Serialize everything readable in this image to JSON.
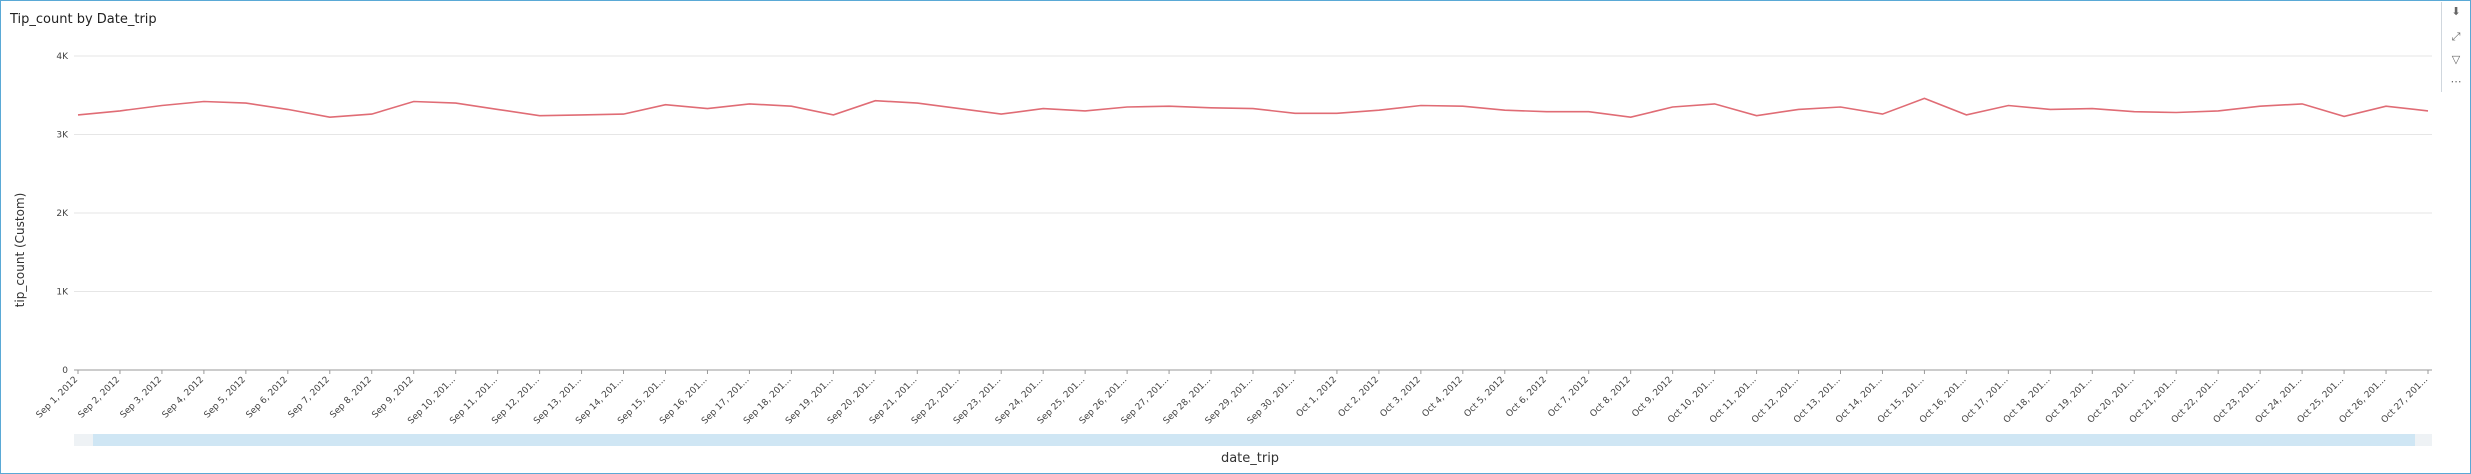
{
  "chart_data": {
    "type": "line",
    "title": "Tip_count by Date_trip",
    "xlabel": "date_trip",
    "ylabel": "tip_count (Custom)",
    "ylim": [
      0,
      4000
    ],
    "y_ticks": [
      "0",
      "1K",
      "2K",
      "3K",
      "4K"
    ],
    "grid": true,
    "legend": "none",
    "line_color": "#e06c75",
    "categories": [
      "Sep 1, 2012",
      "Sep 2, 2012",
      "Sep 3, 2012",
      "Sep 4, 2012",
      "Sep 5, 2012",
      "Sep 6, 2012",
      "Sep 7, 2012",
      "Sep 8, 2012",
      "Sep 9, 2012",
      "Sep 10, 201...",
      "Sep 11, 201...",
      "Sep 12, 201...",
      "Sep 13, 201...",
      "Sep 14, 201...",
      "Sep 15, 201...",
      "Sep 16, 201...",
      "Sep 17, 201...",
      "Sep 18, 201...",
      "Sep 19, 201...",
      "Sep 20, 201...",
      "Sep 21, 201...",
      "Sep 22, 201...",
      "Sep 23, 201...",
      "Sep 24, 201...",
      "Sep 25, 201...",
      "Sep 26, 201...",
      "Sep 27, 201...",
      "Sep 28, 201...",
      "Sep 29, 201...",
      "Sep 30, 201...",
      "Oct 1, 2012",
      "Oct 2, 2012",
      "Oct 3, 2012",
      "Oct 4, 2012",
      "Oct 5, 2012",
      "Oct 6, 2012",
      "Oct 7, 2012",
      "Oct 8, 2012",
      "Oct 9, 2012",
      "Oct 10, 201...",
      "Oct 11, 201...",
      "Oct 12, 201...",
      "Oct 13, 201...",
      "Oct 14, 201...",
      "Oct 15, 201...",
      "Oct 16, 201...",
      "Oct 17, 201...",
      "Oct 18, 201...",
      "Oct 19, 201...",
      "Oct 20, 201...",
      "Oct 21, 201...",
      "Oct 22, 201...",
      "Oct 23, 201...",
      "Oct 24, 201...",
      "Oct 25, 201...",
      "Oct 26, 201...",
      "Oct 27, 201..."
    ],
    "values": [
      3250,
      3300,
      3370,
      3420,
      3400,
      3320,
      3220,
      3260,
      3420,
      3400,
      3320,
      3240,
      3250,
      3260,
      3380,
      3330,
      3390,
      3360,
      3250,
      3430,
      3400,
      3330,
      3260,
      3330,
      3300,
      3350,
      3360,
      3340,
      3330,
      3270,
      3270,
      3310,
      3370,
      3360,
      3310,
      3290,
      3290,
      3220,
      3350,
      3390,
      3240,
      3320,
      3350,
      3260,
      3460,
      3250,
      3370,
      3320,
      3330,
      3290,
      3280,
      3300,
      3360,
      3390,
      3230,
      3360,
      3300
    ]
  },
  "toolbar": {
    "icons": [
      "chevron-double-down-icon",
      "expand-icon",
      "filter-icon",
      "more-icon"
    ]
  }
}
